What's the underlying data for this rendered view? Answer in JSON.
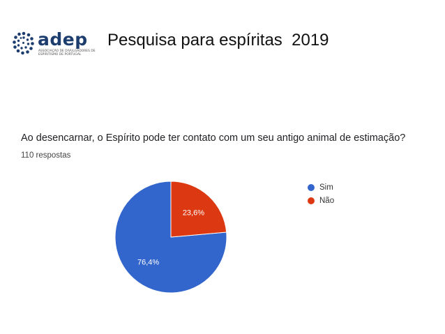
{
  "header": {
    "logo_word": "adep",
    "logo_subtitle": "ASSOCIAÇÃO DE DIVULGADORES DE ESPIRITISMO DE PORTUGAL",
    "title": "Pesquisa para espíritas  2019"
  },
  "survey": {
    "question": "Ao desencarnar, o Espírito pode ter contato com um seu antigo animal de estimação?",
    "responses": "110 respostas"
  },
  "chart_data": {
    "type": "pie",
    "title": "Ao desencarnar, o Espírito pode ter contato com um seu antigo animal de estimação?",
    "subtitle": "110 respostas",
    "legend_position": "right",
    "slices": [
      {
        "label": "Sim",
        "value": 76.4,
        "display": "76,4%",
        "color": "#3366cc"
      },
      {
        "label": "Não",
        "value": 23.6,
        "display": "23,6%",
        "color": "#dc3912"
      }
    ]
  },
  "colors": {
    "logo_primary": "#1d3d6e"
  }
}
